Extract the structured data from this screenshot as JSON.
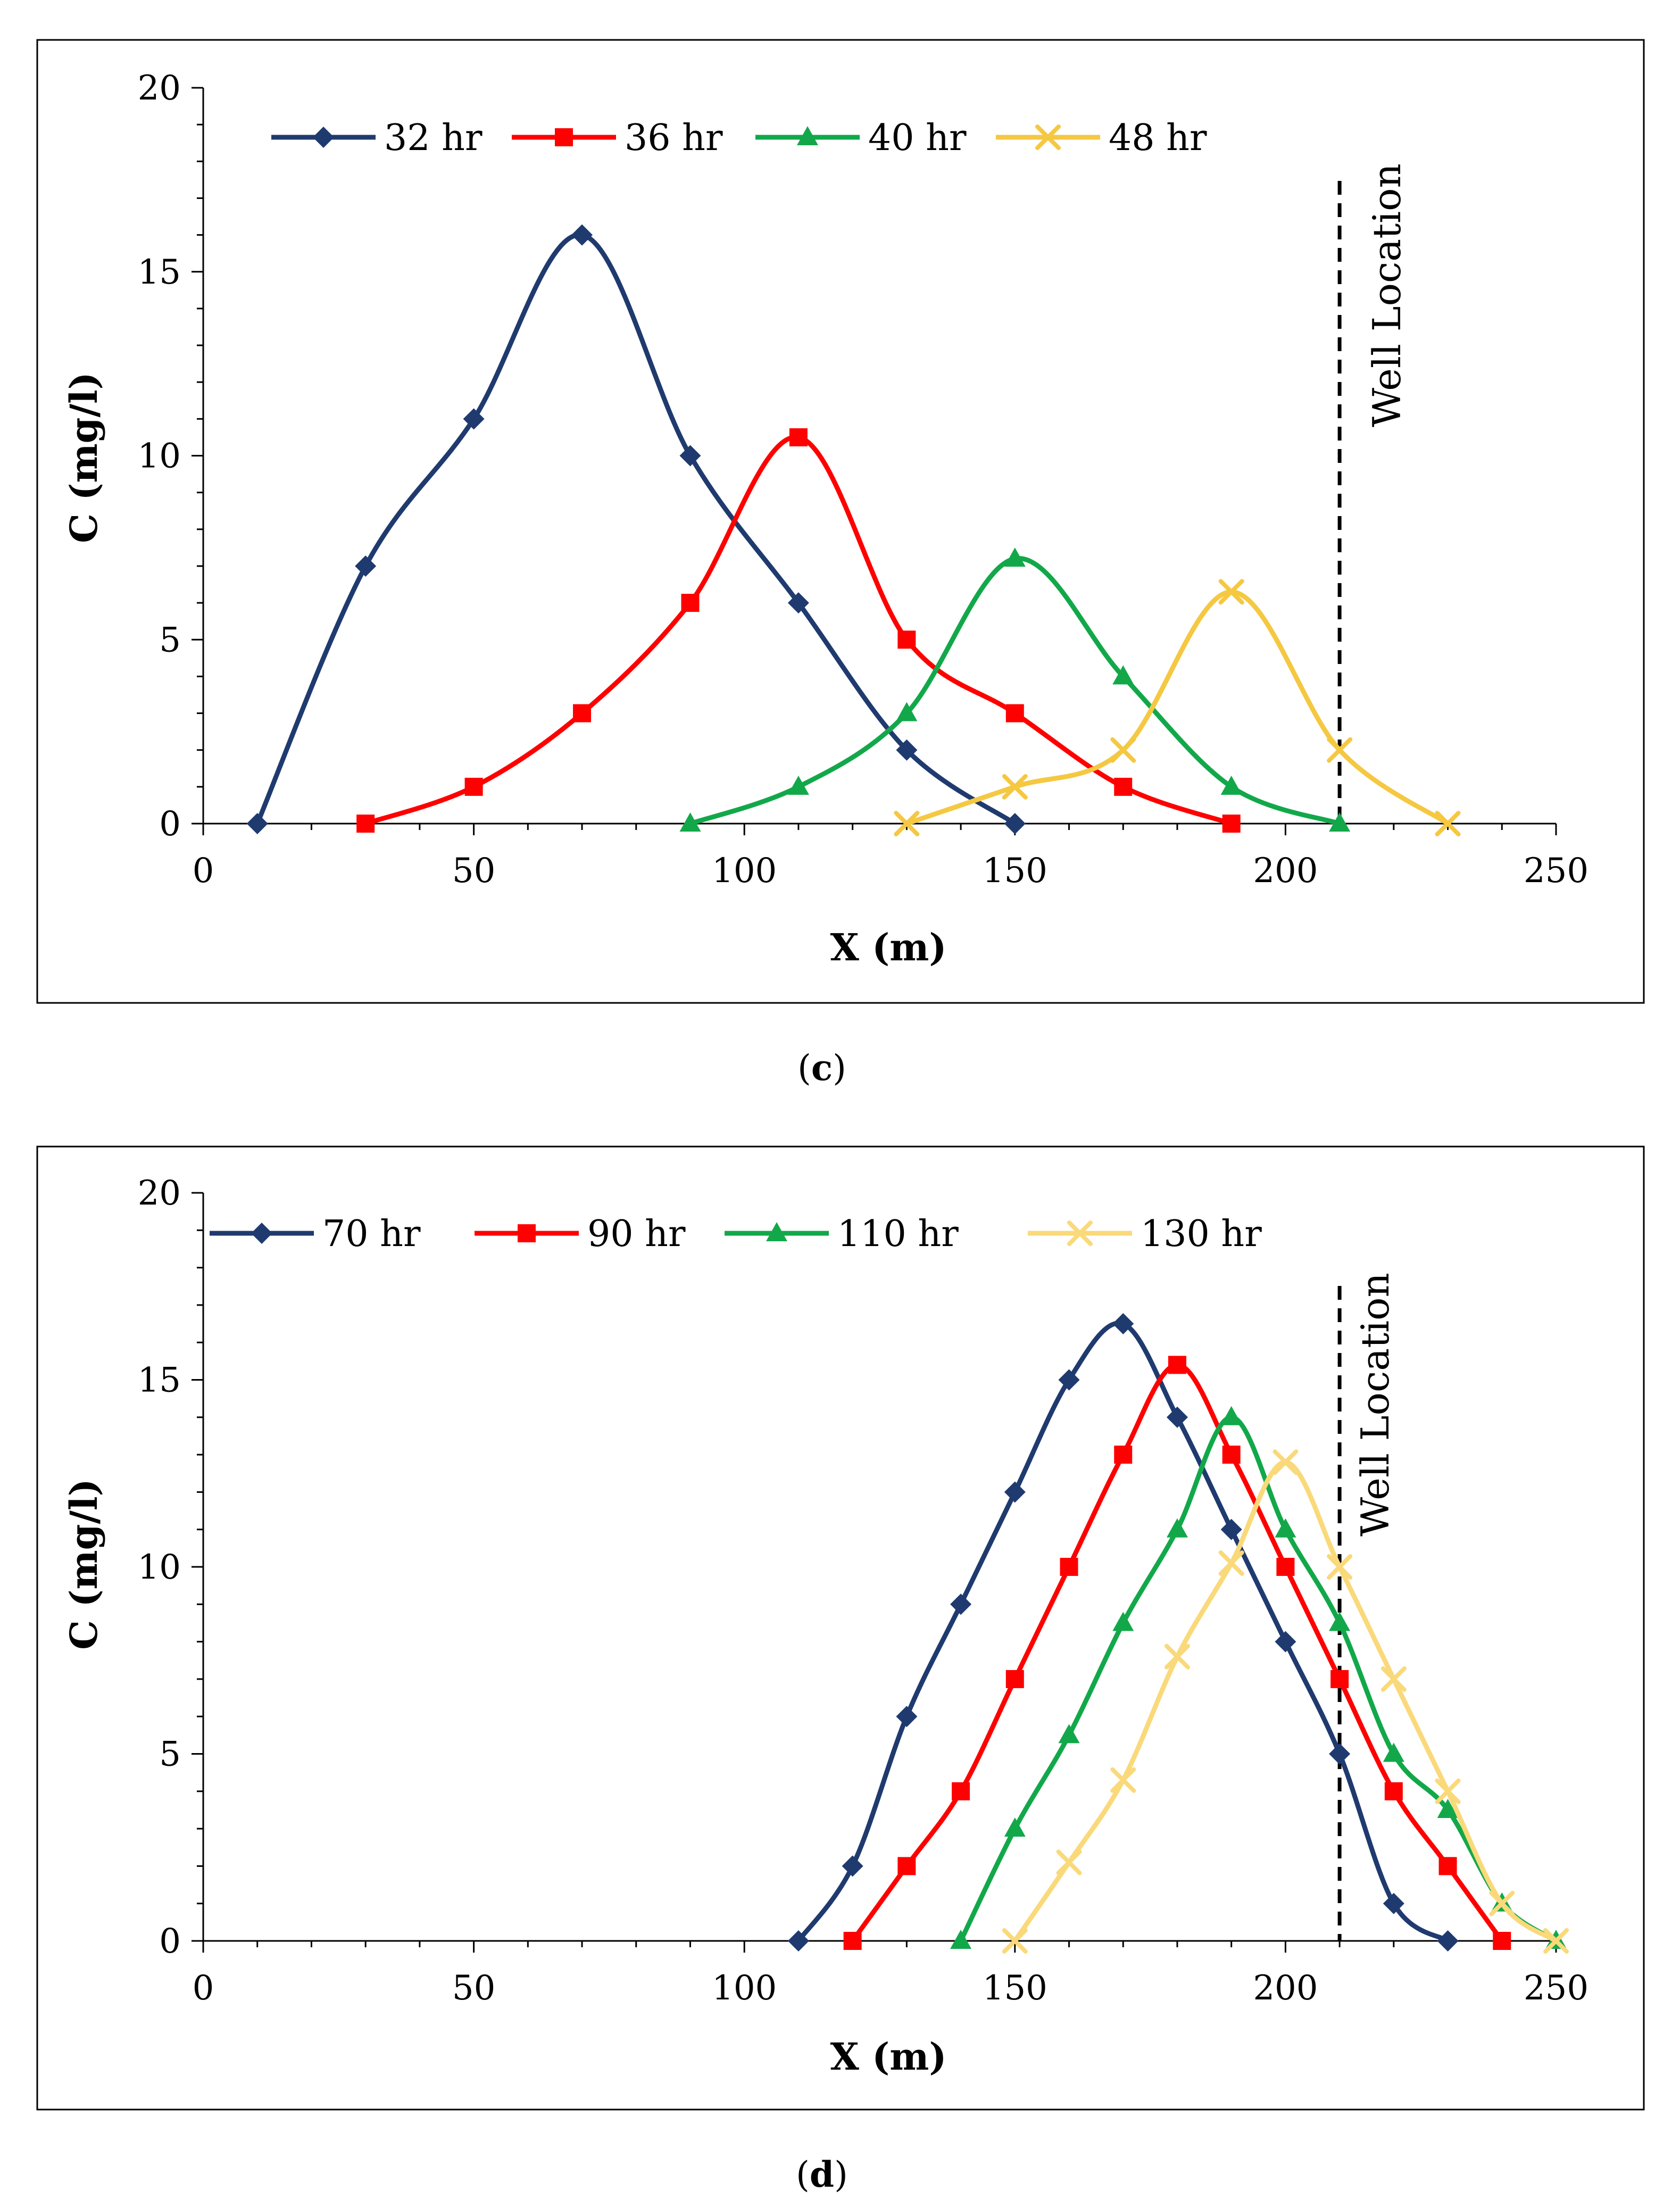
{
  "chart_data": [
    {
      "type": "line",
      "panel": "c",
      "caption_letter": "c",
      "xlabel": "X (m)",
      "ylabel": "C (mg/l)",
      "xlim": [
        0,
        250
      ],
      "ylim": [
        0,
        20
      ],
      "xticks": [
        0,
        50,
        100,
        150,
        200,
        250
      ],
      "yticks": [
        0,
        5,
        10,
        15,
        20
      ],
      "well_x": 210,
      "well_label": "Well Location",
      "series": [
        {
          "name": "32 hr",
          "color": "#1f3a6e",
          "marker": "diamond",
          "x": [
            10,
            30,
            50,
            70,
            90,
            110,
            130,
            150
          ],
          "y": [
            0,
            7,
            11,
            16,
            10,
            6,
            2,
            0
          ]
        },
        {
          "name": "36 hr",
          "color": "#ff0000",
          "marker": "square",
          "x": [
            30,
            50,
            70,
            90,
            110,
            130,
            150,
            170,
            190
          ],
          "y": [
            0,
            1,
            3,
            6,
            10.5,
            5,
            3,
            1,
            0
          ]
        },
        {
          "name": "40 hr",
          "color": "#12a84a",
          "marker": "triangle",
          "x": [
            90,
            110,
            130,
            150,
            170,
            190,
            210
          ],
          "y": [
            0,
            1,
            3,
            7.2,
            4,
            1,
            0
          ]
        },
        {
          "name": "48 hr",
          "color": "#f5c842",
          "marker": "x",
          "x": [
            130,
            150,
            170,
            190,
            210,
            230
          ],
          "y": [
            0,
            1,
            2,
            6.3,
            2,
            0
          ]
        }
      ]
    },
    {
      "type": "line",
      "panel": "d",
      "caption_letter": "d",
      "xlabel": "X (m)",
      "ylabel": "C (mg/l)",
      "xlim": [
        0,
        250
      ],
      "ylim": [
        0,
        20
      ],
      "xticks": [
        0,
        50,
        100,
        150,
        200,
        250
      ],
      "yticks": [
        0,
        5,
        10,
        15,
        20
      ],
      "well_x": 210,
      "well_label": "Well Location",
      "series": [
        {
          "name": "70 hr",
          "color": "#1f3a6e",
          "marker": "diamond",
          "x": [
            110,
            120,
            130,
            140,
            150,
            160,
            170,
            180,
            190,
            200,
            210,
            220,
            230
          ],
          "y": [
            0,
            2,
            6,
            9,
            12,
            15,
            16.5,
            14,
            11,
            8,
            5,
            1,
            0
          ]
        },
        {
          "name": "90 hr",
          "color": "#ff0000",
          "marker": "square",
          "x": [
            120,
            130,
            140,
            150,
            160,
            170,
            180,
            190,
            200,
            210,
            220,
            230,
            240
          ],
          "y": [
            0,
            2,
            4,
            7,
            10,
            13,
            15.4,
            13,
            10,
            7,
            4,
            2,
            0
          ]
        },
        {
          "name": "110 hr",
          "color": "#12a84a",
          "marker": "triangle",
          "x": [
            140,
            150,
            160,
            170,
            180,
            190,
            200,
            210,
            220,
            230,
            240,
            250
          ],
          "y": [
            0,
            3,
            5.5,
            8.5,
            11,
            14,
            11,
            8.5,
            5,
            3.5,
            1,
            0
          ]
        },
        {
          "name": "130 hr",
          "color": "#fad97a",
          "marker": "x",
          "x": [
            150,
            160,
            170,
            180,
            190,
            200,
            210,
            220,
            230,
            240,
            250
          ],
          "y": [
            0,
            2.1,
            4.3,
            7.6,
            10.1,
            12.8,
            10,
            7,
            4,
            1,
            0
          ]
        }
      ]
    }
  ]
}
